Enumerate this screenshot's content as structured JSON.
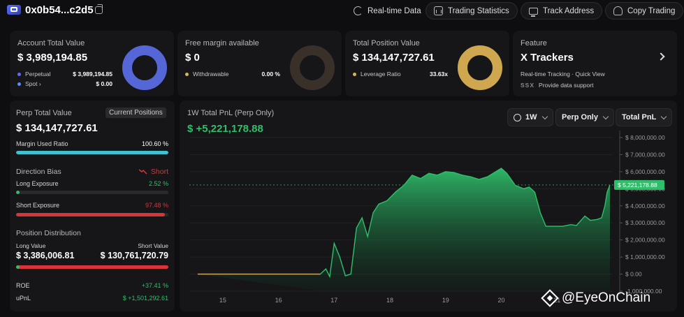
{
  "header": {
    "address": "0x0b54...c2d5",
    "buttons": [
      "Real-time Data",
      "Trading Statistics",
      "Track Address",
      "Copy Trading"
    ]
  },
  "cards": {
    "account": {
      "title": "Account Total Value",
      "value": "$ 3,989,194.85",
      "rows": [
        {
          "label": "Perpetual",
          "value": "$ 3,989,194.85",
          "color": "#5b6cff"
        },
        {
          "label": "Spot",
          "value": "$ 0.00",
          "color": "#5b8cff"
        }
      ],
      "donut_color": "#5566d6"
    },
    "margin": {
      "title": "Free margin available",
      "value": "$ 0",
      "rows": [
        {
          "label": "Withdrawable",
          "value": "0.00 %",
          "color": "#d8b45a"
        }
      ],
      "donut_color": "#3a302a"
    },
    "position": {
      "title": "Total Position Value",
      "value": "$ 134,147,727.61",
      "rows": [
        {
          "label": "Leverage Ratio",
          "value": "33.63x",
          "color": "#d8b45a"
        }
      ],
      "donut_color": "#cfa74e"
    },
    "feature": {
      "title": "Feature",
      "name": "X Trackers",
      "sub": "Real-time Tracking · Quick View",
      "support": "Provide data support",
      "brand": "SSX"
    }
  },
  "left_panel": {
    "perp_title": "Perp Total Value",
    "tag": "Current Positions",
    "perp_value": "$ 134,147,727.61",
    "margin_label": "Margin Used Ratio",
    "margin_value": "100.60 %",
    "margin_fraction": 1.0,
    "direction_label": "Direction Bias",
    "direction_value": "Short",
    "long_label": "Long Exposure",
    "long_value": "2.52 %",
    "long_fraction": 0.0252,
    "short_label": "Short Exposure",
    "short_value": "97.48 %",
    "short_fraction": 0.9748,
    "dist_title": "Position Distribution",
    "long_value_label": "Long Value",
    "short_value_label": "Short Value",
    "long_amount": "$ 3,386,006.81",
    "short_amount": "$ 130,761,720.79",
    "dist_long_fraction": 0.0252,
    "roe_label": "ROE",
    "roe_value": "+37.41 %",
    "upnl_label": "uPnL",
    "upnl_value": "$ +1,501,292.61"
  },
  "chart_panel": {
    "title": "1W Total PnL (Perp Only)",
    "value": "$ +5,221,178.88",
    "controls": [
      "1W",
      "Perp Only",
      "Total PnL"
    ],
    "current_label": "$ 5,221,178.88"
  },
  "chart_data": {
    "type": "area",
    "title": "1W Total PnL (Perp Only)",
    "xlabel": "",
    "ylabel": "",
    "x_ticks": [
      "15",
      "16",
      "17",
      "18",
      "19",
      "20",
      "21"
    ],
    "y_ticks": [
      "-1,000,000.00",
      "$ 0.00",
      "$ 1,000,000.00",
      "$ 2,000,000.00",
      "$ 3,000,000.00",
      "$ 4,000,000.00",
      "$ 5,000,000.00",
      "$ 6,000,000.00",
      "$ 7,000,000.00",
      "$ 8,000,000.00"
    ],
    "ylim": [
      -1000000,
      8000000
    ],
    "xlim": [
      14.4,
      21.9
    ],
    "current": 5221178.88,
    "color_up": "#2fbf6a",
    "color_flat": "#c8a060",
    "points": [
      [
        14.55,
        0
      ],
      [
        15.2,
        0
      ],
      [
        16.0,
        0
      ],
      [
        16.6,
        0
      ],
      [
        16.75,
        0
      ],
      [
        16.85,
        300000
      ],
      [
        16.92,
        -150000
      ],
      [
        17.0,
        1800000
      ],
      [
        17.1,
        1000000
      ],
      [
        17.2,
        -100000
      ],
      [
        17.3,
        0
      ],
      [
        17.4,
        2700000
      ],
      [
        17.5,
        3300000
      ],
      [
        17.6,
        2200000
      ],
      [
        17.7,
        3600000
      ],
      [
        17.8,
        4100000
      ],
      [
        17.95,
        4300000
      ],
      [
        18.1,
        4800000
      ],
      [
        18.25,
        5200000
      ],
      [
        18.4,
        5800000
      ],
      [
        18.55,
        5600000
      ],
      [
        18.7,
        5900000
      ],
      [
        18.85,
        5800000
      ],
      [
        19.0,
        6000000
      ],
      [
        19.15,
        5950000
      ],
      [
        19.3,
        5800000
      ],
      [
        19.45,
        5700000
      ],
      [
        19.6,
        5550000
      ],
      [
        19.75,
        5700000
      ],
      [
        19.9,
        6000000
      ],
      [
        20.0,
        6200000
      ],
      [
        20.1,
        5900000
      ],
      [
        20.25,
        5200000
      ],
      [
        20.4,
        5000000
      ],
      [
        20.5,
        5100000
      ],
      [
        20.6,
        4800000
      ],
      [
        20.7,
        3600000
      ],
      [
        20.8,
        2800000
      ],
      [
        20.95,
        2800000
      ],
      [
        21.1,
        2800000
      ],
      [
        21.25,
        2900000
      ],
      [
        21.35,
        2850000
      ],
      [
        21.5,
        3400000
      ],
      [
        21.6,
        3150000
      ],
      [
        21.72,
        3200000
      ],
      [
        21.8,
        3300000
      ],
      [
        21.86,
        4000000
      ],
      [
        21.9,
        4800000
      ],
      [
        21.95,
        5221178.88
      ]
    ]
  },
  "watermark": "@EyeOnChain"
}
